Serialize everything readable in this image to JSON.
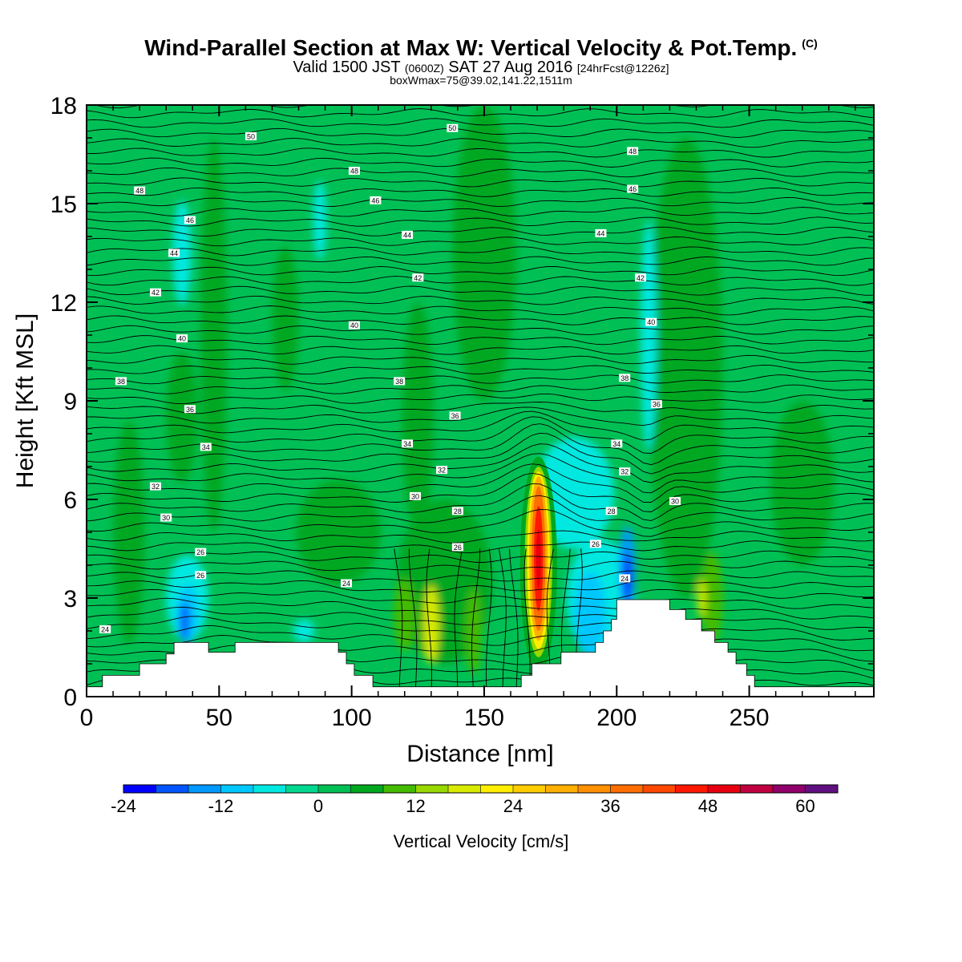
{
  "header": {
    "title": "Wind-Parallel Section at Max W: Vertical Velocity & Pot.Temp.",
    "title_mark": "(C)",
    "valid_prefix": "Valid 1500 JST",
    "valid_utc": "(0600Z)",
    "valid_date": "SAT 27 Aug 2016",
    "valid_fcst": "[24hrFcst@1226z]",
    "box_info": "boxWmax=75@39.02,141.22,1511m"
  },
  "chart_data": {
    "type": "contour",
    "xlabel": "Distance [nm]",
    "ylabel": "Height [Kft MSL]",
    "xlim": [
      0,
      297
    ],
    "ylim": [
      0,
      18
    ],
    "x_ticks": [
      0,
      50,
      100,
      150,
      200,
      250
    ],
    "y_ticks": [
      0,
      3,
      6,
      9,
      12,
      15,
      18
    ],
    "colorbar": {
      "label": "Vertical Velocity [cm/s]",
      "tick_labels": [
        "-24",
        "-12",
        "0",
        "12",
        "24",
        "36",
        "48",
        "60"
      ],
      "tick_values": [
        -24,
        -12,
        0,
        12,
        24,
        36,
        48,
        60
      ],
      "levels": [
        -24,
        -20,
        -16,
        -12,
        -8,
        -4,
        0,
        4,
        8,
        12,
        16,
        20,
        24,
        28,
        32,
        36,
        40,
        44,
        48,
        52,
        56,
        60,
        64
      ],
      "colors": [
        "#0000ff",
        "#0055ff",
        "#0099ff",
        "#00c8ff",
        "#00e8e0",
        "#00d890",
        "#00c055",
        "#00a820",
        "#44bb00",
        "#99d800",
        "#d8ea00",
        "#ffee00",
        "#ffcc00",
        "#ffb000",
        "#ff9000",
        "#ff6e00",
        "#ff4800",
        "#ff1800",
        "#e80010",
        "#c00040",
        "#90006a",
        "#601080"
      ]
    },
    "max_w": {
      "x": 170,
      "z": 4.3,
      "value": 75
    },
    "terrain": [
      [
        0,
        0.3
      ],
      [
        6,
        0.3
      ],
      [
        6,
        0.65
      ],
      [
        20,
        0.65
      ],
      [
        20,
        1.0
      ],
      [
        30,
        1.0
      ],
      [
        30,
        1.3
      ],
      [
        33,
        1.3
      ],
      [
        33,
        1.65
      ],
      [
        46,
        1.65
      ],
      [
        46,
        1.35
      ],
      [
        56,
        1.35
      ],
      [
        56,
        1.65
      ],
      [
        95,
        1.65
      ],
      [
        95,
        1.35
      ],
      [
        98,
        1.35
      ],
      [
        98,
        1.0
      ],
      [
        101,
        1.0
      ],
      [
        101,
        0.65
      ],
      [
        108,
        0.65
      ],
      [
        108,
        0.3
      ],
      [
        164,
        0.3
      ],
      [
        164,
        0.65
      ],
      [
        168,
        0.65
      ],
      [
        168,
        1.0
      ],
      [
        179,
        1.0
      ],
      [
        179,
        1.35
      ],
      [
        192,
        1.35
      ],
      [
        192,
        1.65
      ],
      [
        195,
        1.65
      ],
      [
        195,
        2.0
      ],
      [
        198,
        2.0
      ],
      [
        198,
        2.35
      ],
      [
        200,
        2.35
      ],
      [
        200,
        2.95
      ],
      [
        220,
        2.95
      ],
      [
        220,
        2.65
      ],
      [
        226,
        2.65
      ],
      [
        226,
        2.35
      ],
      [
        232,
        2.35
      ],
      [
        232,
        2.0
      ],
      [
        237,
        2.0
      ],
      [
        237,
        1.65
      ],
      [
        242,
        1.65
      ],
      [
        242,
        1.35
      ],
      [
        245,
        1.35
      ],
      [
        245,
        1.0
      ],
      [
        249,
        1.0
      ],
      [
        249,
        0.65
      ],
      [
        252,
        0.65
      ],
      [
        252,
        0.3
      ],
      [
        297,
        0.3
      ]
    ],
    "theta_labels": [
      {
        "text": "24",
        "x": 7,
        "z": 2.05
      },
      {
        "text": "24",
        "x": 98,
        "z": 3.45
      },
      {
        "text": "24",
        "x": 203,
        "z": 3.6
      },
      {
        "text": "26",
        "x": 43,
        "z": 3.7
      },
      {
        "text": "26",
        "x": 43,
        "z": 4.4
      },
      {
        "text": "26",
        "x": 140,
        "z": 4.55
      },
      {
        "text": "26",
        "x": 192,
        "z": 4.65
      },
      {
        "text": "28",
        "x": 140,
        "z": 5.65
      },
      {
        "text": "28",
        "x": 198,
        "z": 5.65
      },
      {
        "text": "30",
        "x": 30,
        "z": 5.45
      },
      {
        "text": "30",
        "x": 124,
        "z": 6.1
      },
      {
        "text": "30",
        "x": 222,
        "z": 5.95
      },
      {
        "text": "32",
        "x": 26,
        "z": 6.4
      },
      {
        "text": "32",
        "x": 134,
        "z": 6.9
      },
      {
        "text": "32",
        "x": 203,
        "z": 6.85
      },
      {
        "text": "34",
        "x": 45,
        "z": 7.6
      },
      {
        "text": "34",
        "x": 121,
        "z": 7.7
      },
      {
        "text": "34",
        "x": 200,
        "z": 7.7
      },
      {
        "text": "36",
        "x": 39,
        "z": 8.75
      },
      {
        "text": "36",
        "x": 139,
        "z": 8.55
      },
      {
        "text": "36",
        "x": 215,
        "z": 8.9
      },
      {
        "text": "38",
        "x": 13,
        "z": 9.6
      },
      {
        "text": "38",
        "x": 118,
        "z": 9.6
      },
      {
        "text": "38",
        "x": 203,
        "z": 9.7
      },
      {
        "text": "40",
        "x": 36,
        "z": 10.9
      },
      {
        "text": "40",
        "x": 101,
        "z": 11.3
      },
      {
        "text": "40",
        "x": 213,
        "z": 11.4
      },
      {
        "text": "42",
        "x": 26,
        "z": 12.3
      },
      {
        "text": "42",
        "x": 125,
        "z": 12.75
      },
      {
        "text": "42",
        "x": 209,
        "z": 12.75
      },
      {
        "text": "44",
        "x": 33,
        "z": 13.5
      },
      {
        "text": "44",
        "x": 121,
        "z": 14.05
      },
      {
        "text": "44",
        "x": 194,
        "z": 14.1
      },
      {
        "text": "46",
        "x": 39,
        "z": 14.5
      },
      {
        "text": "46",
        "x": 109,
        "z": 15.1
      },
      {
        "text": "46",
        "x": 206,
        "z": 15.45
      },
      {
        "text": "48",
        "x": 20,
        "z": 15.4
      },
      {
        "text": "48",
        "x": 101,
        "z": 16.0
      },
      {
        "text": "48",
        "x": 206,
        "z": 16.6
      },
      {
        "text": "50",
        "x": 62,
        "z": 17.05
      },
      {
        "text": "50",
        "x": 138,
        "z": 17.3
      }
    ]
  }
}
